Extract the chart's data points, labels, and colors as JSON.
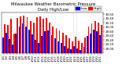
{
  "title": "Milwaukee Weather Barometric Pressure",
  "subtitle": "Daily High/Low",
  "legend_high": "High",
  "legend_low": "Low",
  "color_high": "#ff0000",
  "color_low": "#0000ff",
  "background": "#ffffff",
  "ylim": [
    28.8,
    30.7
  ],
  "yticks": [
    29.0,
    29.2,
    29.4,
    29.6,
    29.8,
    30.0,
    30.2,
    30.4,
    30.6
  ],
  "ytick_labels": [
    "29.00",
    "29.20",
    "29.40",
    "29.60",
    "29.80",
    "30.00",
    "30.20",
    "30.40",
    "30.60"
  ],
  "dates": [
    "1/1",
    "1/2",
    "1/3",
    "1/4",
    "1/5",
    "1/6",
    "1/7",
    "1/8",
    "1/9",
    "1/10",
    "1/11",
    "1/12",
    "1/13",
    "1/14",
    "1/15",
    "1/16",
    "1/17",
    "1/18",
    "1/19",
    "1/20",
    "1/21",
    "1/22",
    "1/23",
    "1/24",
    "1/25",
    "1/26",
    "1/27",
    "1/28",
    "1/29",
    "1/30",
    "1/31"
  ],
  "highs": [
    30.15,
    30.1,
    30.38,
    29.72,
    30.42,
    30.5,
    30.55,
    30.48,
    30.3,
    30.22,
    30.48,
    30.52,
    30.38,
    30.42,
    30.22,
    30.05,
    29.95,
    29.85,
    29.75,
    29.62,
    29.48,
    29.35,
    29.55,
    29.38,
    29.28,
    29.52,
    30.05,
    30.18,
    30.28,
    30.22,
    30.1
  ],
  "lows": [
    29.52,
    29.75,
    29.45,
    29.18,
    29.72,
    30.05,
    30.18,
    30.05,
    29.88,
    29.68,
    29.42,
    29.28,
    29.58,
    29.82,
    29.85,
    29.65,
    29.48,
    29.35,
    29.28,
    29.12,
    29.02,
    28.98,
    29.12,
    29.02,
    28.95,
    29.08,
    29.58,
    29.72,
    29.88,
    29.82,
    29.65
  ],
  "bar_width": 0.45,
  "fontsize_title": 3.8,
  "fontsize_ticks": 2.8,
  "fontsize_legend": 3.2,
  "dpi": 100,
  "figwidth": 1.6,
  "figheight": 0.87
}
